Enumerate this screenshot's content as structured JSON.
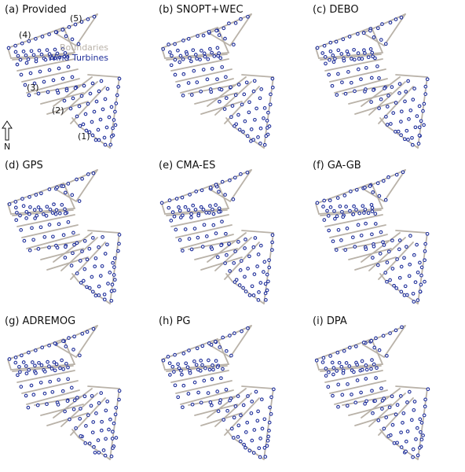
{
  "panels": [
    {
      "id": "a",
      "title": "(a) Provided"
    },
    {
      "id": "b",
      "title": "(b) SNOPT+WEC"
    },
    {
      "id": "c",
      "title": "(c) DEBO"
    },
    {
      "id": "d",
      "title": "(d) GPS"
    },
    {
      "id": "e",
      "title": "(e) CMA-ES"
    },
    {
      "id": "f",
      "title": "(f) GA-GB"
    },
    {
      "id": "g",
      "title": "(g) ADREMOG"
    },
    {
      "id": "h",
      "title": "(h) PG"
    },
    {
      "id": "i",
      "title": "(i) DPA"
    }
  ],
  "region_labels": [
    "(1)",
    "(2)",
    "(3)",
    "(4)",
    "(5)"
  ],
  "legend": {
    "boundaries": "Boundaries",
    "turbines": "Wind Turbines"
  },
  "north_label": "N",
  "colors": {
    "boundary": "#b9b2a8",
    "turbine": "#1f2f9a",
    "text": "#111111"
  }
}
